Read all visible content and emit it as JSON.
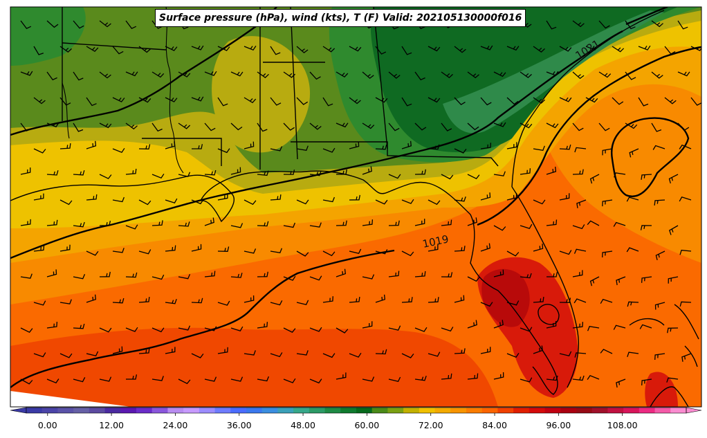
{
  "title": "Surface pressure (hPa), wind (kts), T (F) Valid: 202105130000f016",
  "contour_labels": [
    "1019",
    "1021"
  ],
  "colorbar": {
    "ticks": [
      "0.00",
      "12.00",
      "24.00",
      "36.00",
      "48.00",
      "60.00",
      "72.00",
      "84.00",
      "96.00",
      "108.00"
    ],
    "colors": [
      "#3a3aa6",
      "#4b44a8",
      "#5a52a8",
      "#6660a6",
      "#5c4aa0",
      "#4a2aa0",
      "#5a18b0",
      "#6a2cc8",
      "#8a56dc",
      "#b88cf0",
      "#c79aff",
      "#9c8cff",
      "#6e7cff",
      "#4a6cff",
      "#3a78ee",
      "#3a8ee0",
      "#3aa0b8",
      "#36a88a",
      "#2c9a66",
      "#1e8a44",
      "#0f7a2e",
      "#066a1c",
      "#4a8a18",
      "#7aa012",
      "#c2b000",
      "#f0c000",
      "#f3aa00",
      "#f89400",
      "#fa7c00",
      "#fb6400",
      "#f04000",
      "#e01e00",
      "#d40a0a",
      "#c00010",
      "#aa0010",
      "#960a14",
      "#a0102a",
      "#c01040",
      "#d8145a",
      "#ec2a82",
      "#f45aa8",
      "#fa8cd0"
    ],
    "range_min": -4,
    "range_max": 120
  },
  "temperature_palette": {
    "deep_green": "#0f6a22",
    "green": "#2f8a2e",
    "olive_green": "#5a8a1c",
    "olive": "#8ea012",
    "mustard": "#b8ab10",
    "yellow": "#eec200",
    "light_orange": "#f4a400",
    "orange": "#f88a00",
    "dark_orange": "#fa6a00",
    "red_orange": "#f04800",
    "red": "#d81a0a",
    "dark_red": "#b80a0a"
  }
}
